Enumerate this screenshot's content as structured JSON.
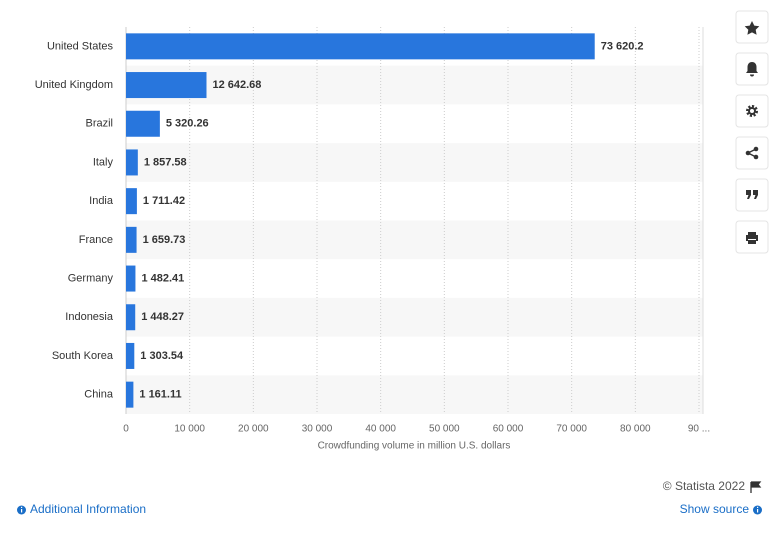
{
  "chart_data": {
    "type": "bar",
    "orientation": "horizontal",
    "x_label": "Crowdfunding volume in million U.S. dollars",
    "categories": [
      "United States",
      "United Kingdom",
      "Brazil",
      "Italy",
      "India",
      "France",
      "Germany",
      "Indonesia",
      "South Korea",
      "China"
    ],
    "values": [
      73620.2,
      12642.68,
      5320.26,
      1857.58,
      1711.42,
      1659.73,
      1482.41,
      1448.27,
      1303.54,
      1161.11
    ],
    "value_labels": [
      "73 620.2",
      "12 642.68",
      "5 320.26",
      "1 857.58",
      "1 711.42",
      "1 659.73",
      "1 482.41",
      "1 448.27",
      "1 303.54",
      "1 161.11"
    ],
    "color": "#2876dd",
    "xlim": [
      0,
      90000
    ],
    "xticks": [
      0,
      {
        "value": 10000,
        "label": "10 000"
      },
      {
        "value": 20000,
        "label": "20 000"
      },
      {
        "value": 30000,
        "label": "30 000"
      },
      {
        "value": 40000,
        "label": "40 000"
      },
      {
        "value": 50000,
        "label": "50 000"
      },
      {
        "value": 60000,
        "label": "60 000"
      },
      {
        "value": 70000,
        "label": "70 000"
      },
      {
        "value": 80000,
        "label": "80 000"
      },
      {
        "value": 90000,
        "label": "90 ..."
      }
    ],
    "grid": true
  },
  "footer": {
    "copyright": "© Statista 2022",
    "additional_info": "Additional Information",
    "show_source": "Show source"
  }
}
